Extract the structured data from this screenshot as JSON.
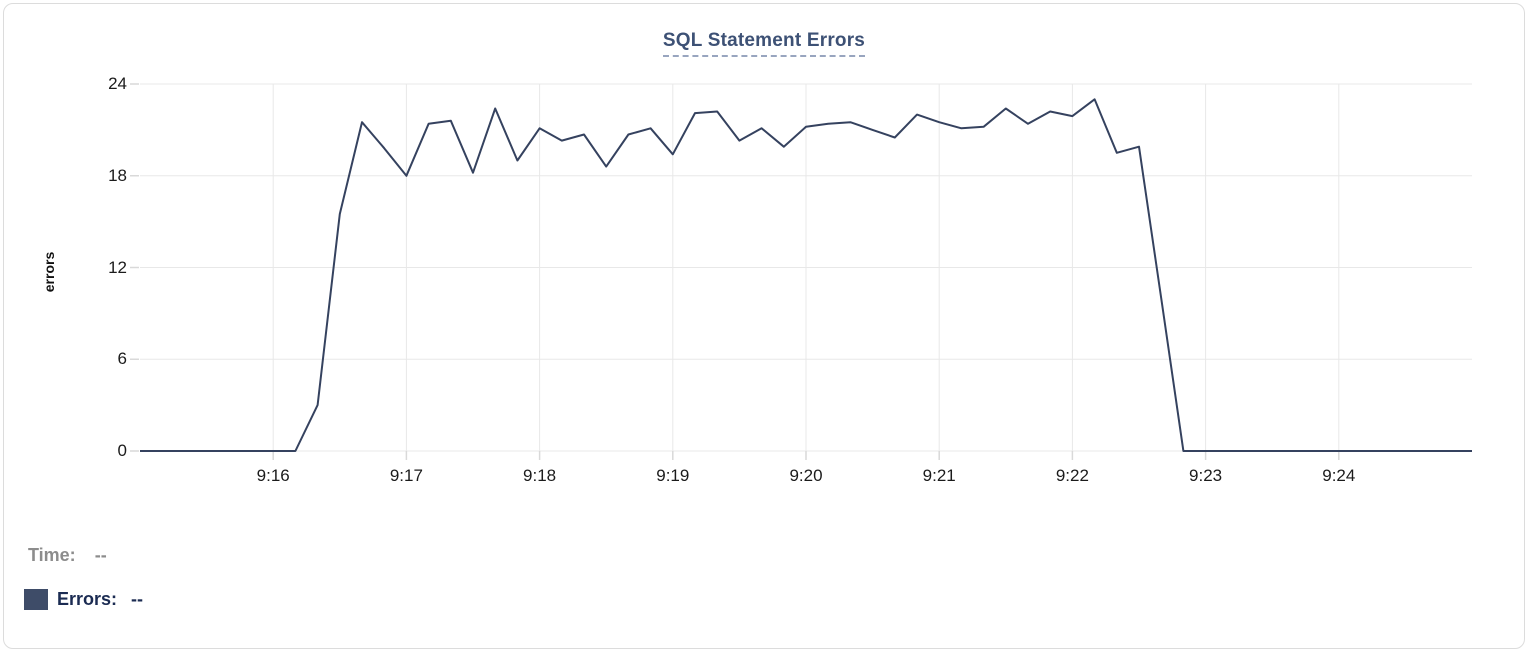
{
  "chart_data": {
    "type": "line",
    "title": "SQL Statement Errors",
    "ylabel": "errors",
    "xlabel": "",
    "ylim": [
      0,
      24
    ],
    "y_ticks": [
      0,
      6,
      12,
      18,
      24
    ],
    "x_ticks": [
      "9:16",
      "9:17",
      "9:18",
      "9:19",
      "9:20",
      "9:21",
      "9:22",
      "9:23",
      "9:24"
    ],
    "xlim": [
      "9:15:00",
      "9:25:00"
    ],
    "grid": true,
    "legend_position": "bottom-left",
    "line_color": "#35425f",
    "grid_color": "#e8e8e8",
    "tick_color": "#d9d9d9",
    "x": [
      "9:15:00",
      "9:15:10",
      "9:15:20",
      "9:15:30",
      "9:15:40",
      "9:15:50",
      "9:16:00",
      "9:16:10",
      "9:16:20",
      "9:16:30",
      "9:16:40",
      "9:16:50",
      "9:17:00",
      "9:17:10",
      "9:17:20",
      "9:17:30",
      "9:17:40",
      "9:17:50",
      "9:18:00",
      "9:18:10",
      "9:18:20",
      "9:18:30",
      "9:18:40",
      "9:18:50",
      "9:19:00",
      "9:19:10",
      "9:19:20",
      "9:19:30",
      "9:19:40",
      "9:19:50",
      "9:20:00",
      "9:20:10",
      "9:20:20",
      "9:20:30",
      "9:20:40",
      "9:20:50",
      "9:21:00",
      "9:21:10",
      "9:21:20",
      "9:21:30",
      "9:21:40",
      "9:21:50",
      "9:22:00",
      "9:22:10",
      "9:22:20",
      "9:22:30",
      "9:22:40",
      "9:22:50",
      "9:23:00",
      "9:23:10",
      "9:23:20",
      "9:23:30",
      "9:23:40",
      "9:23:50",
      "9:24:00",
      "9:24:10",
      "9:24:20",
      "9:24:30",
      "9:24:40",
      "9:24:50",
      "9:25:00"
    ],
    "series": [
      {
        "name": "Errors",
        "values": [
          0,
          0,
          0,
          0,
          0,
          0,
          0,
          0,
          3,
          15.5,
          21.5,
          19.8,
          18,
          21.4,
          21.6,
          18.2,
          22.4,
          19,
          21.1,
          20.3,
          20.7,
          18.6,
          20.7,
          21.1,
          19.4,
          22.1,
          22.2,
          20.3,
          21.1,
          19.9,
          21.2,
          21.4,
          21.5,
          21,
          20.5,
          22,
          21.5,
          21.1,
          21.2,
          22.4,
          21.4,
          22.2,
          21.9,
          23,
          19.5,
          19.9,
          10,
          0,
          0,
          0,
          0,
          0,
          0,
          0,
          0,
          0,
          0,
          0,
          0,
          0,
          0
        ]
      }
    ]
  },
  "tooltip": {
    "time_label": "Time:",
    "time_value": "--",
    "errors_label": "Errors:",
    "errors_value": "--",
    "swatch_color": "#3e4c68"
  }
}
